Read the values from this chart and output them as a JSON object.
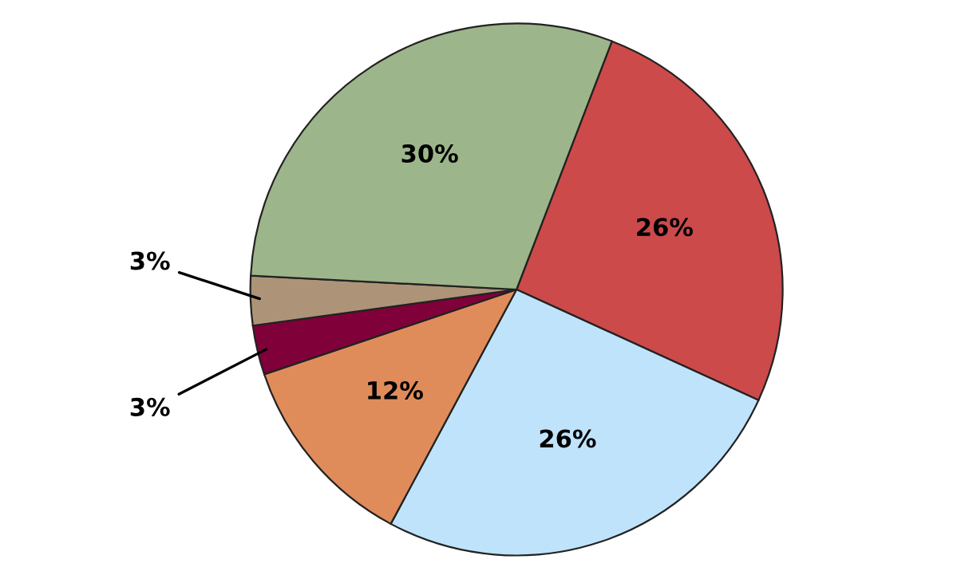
{
  "chart_data": {
    "type": "pie",
    "categories": [
      null,
      null,
      null,
      null,
      null,
      null
    ],
    "values": [
      26,
      26,
      12,
      3,
      3,
      30
    ],
    "colors": [
      "#cc4a4a",
      "#bfe3fa",
      "#e08c5a",
      "#80003a",
      "#ad9478",
      "#9db58a"
    ],
    "value_labels": [
      "26%",
      "26%",
      "12%",
      "3%",
      "3%",
      "30%"
    ]
  }
}
